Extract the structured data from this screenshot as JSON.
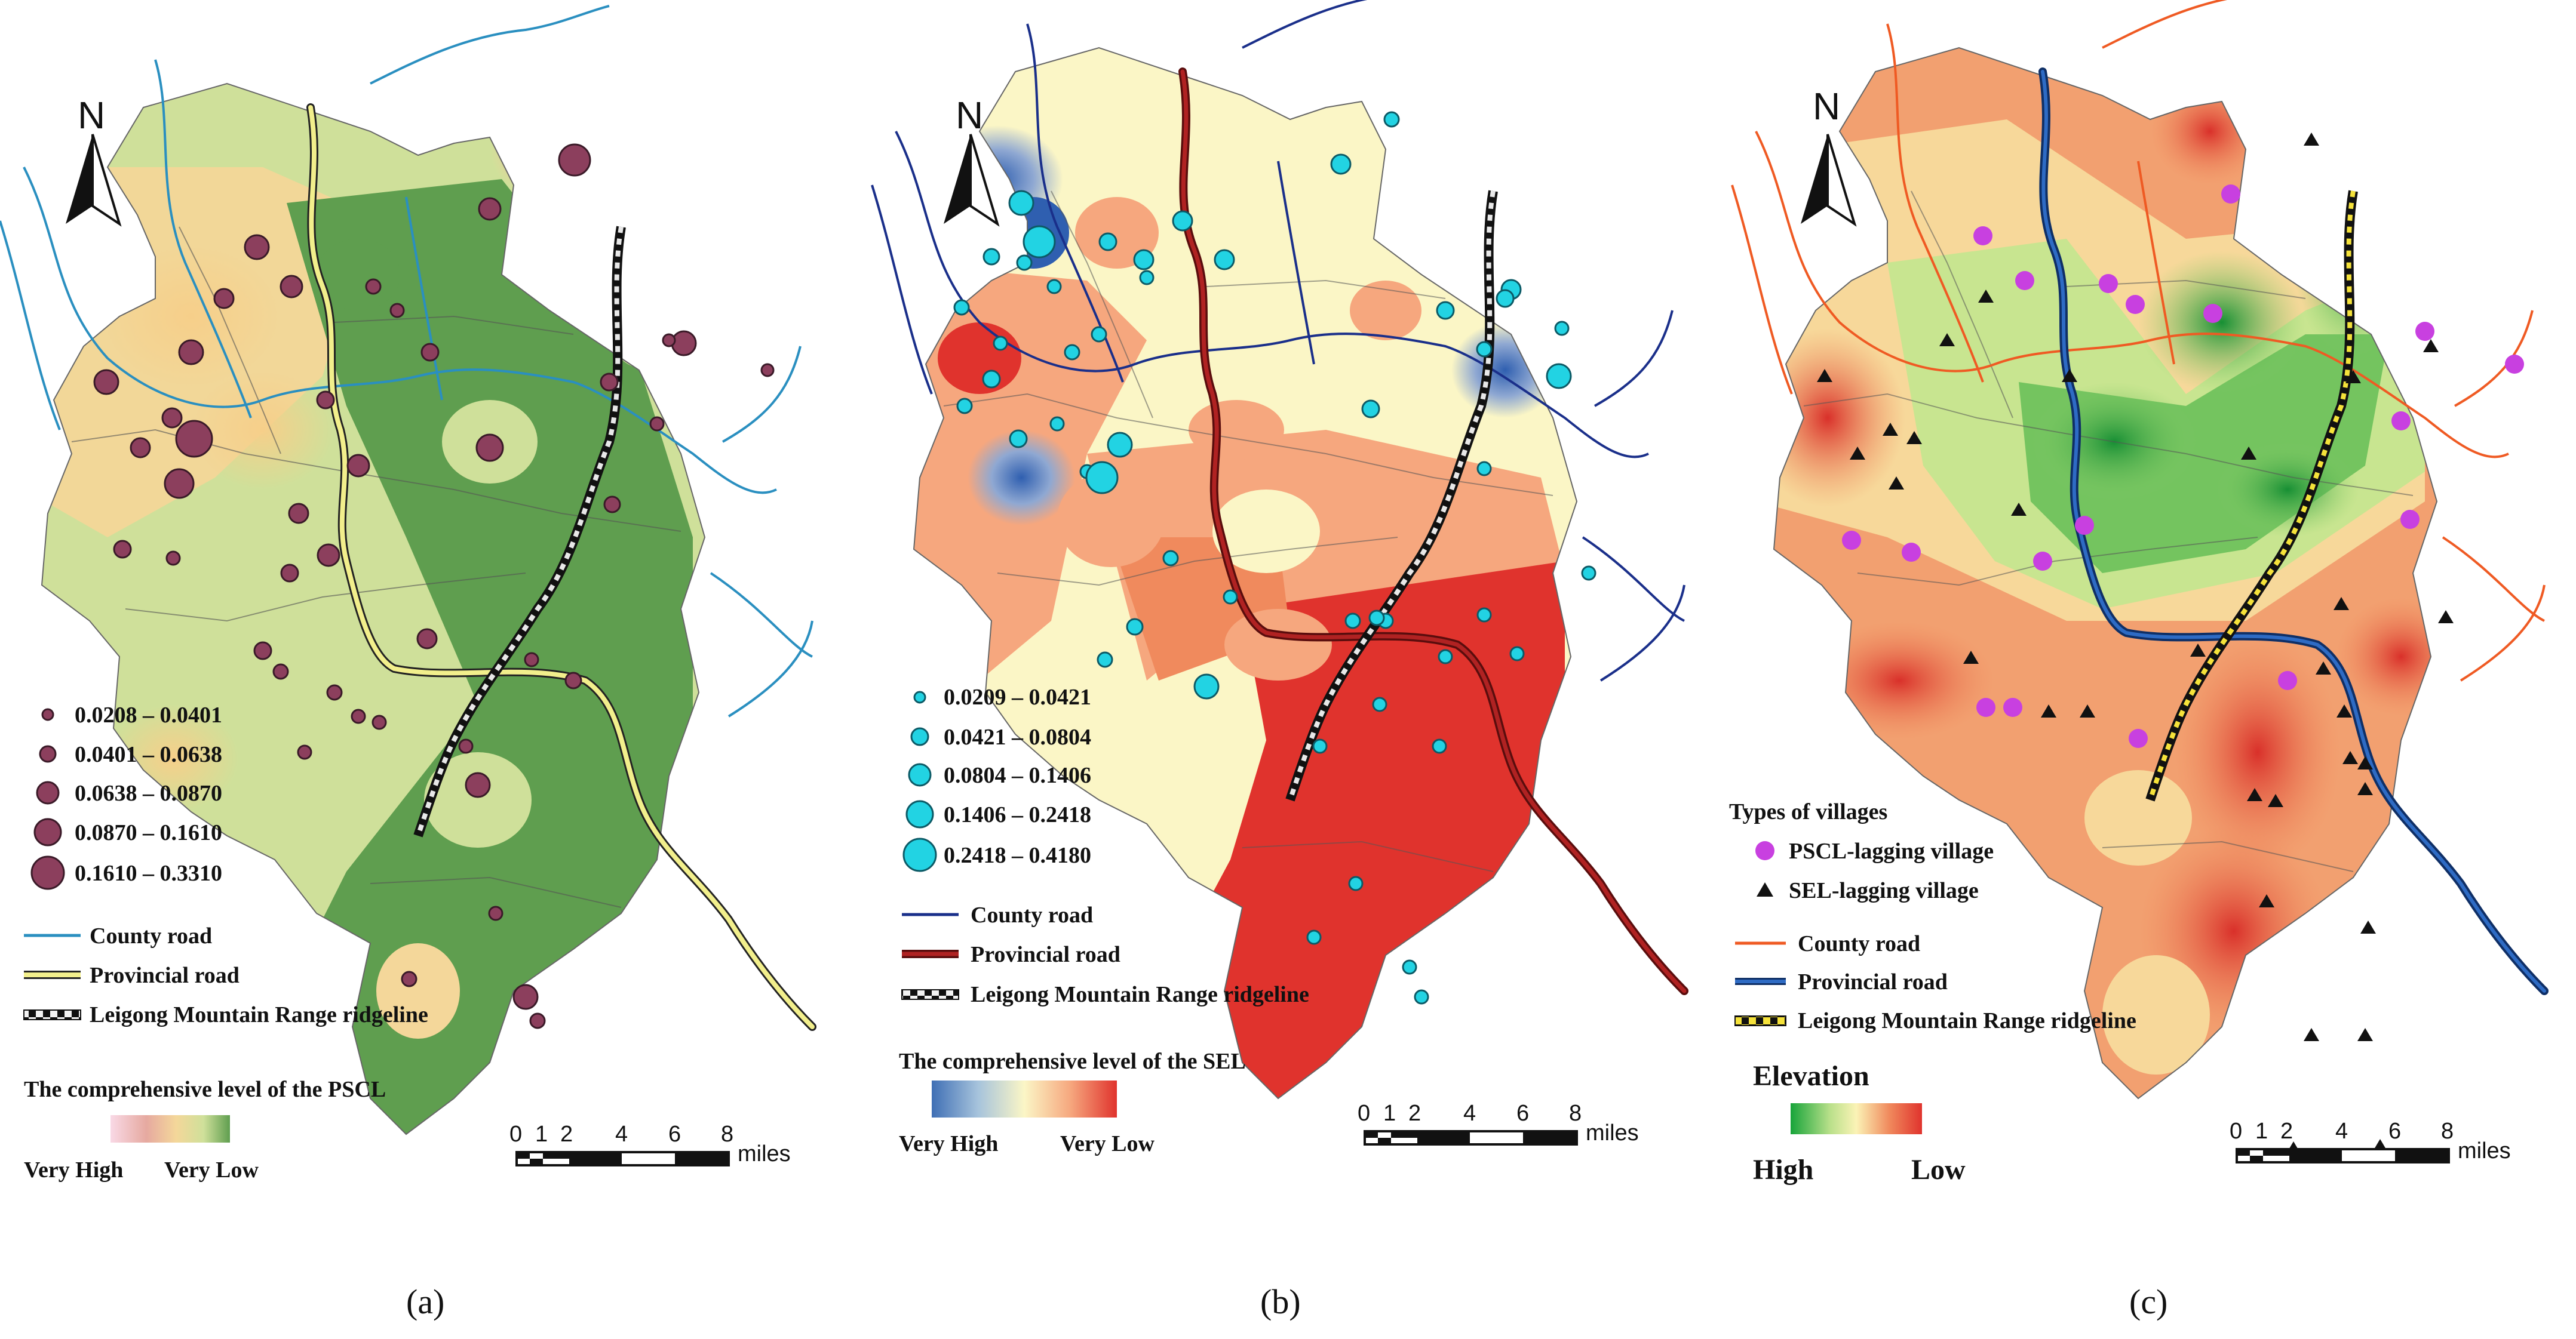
{
  "panels": [
    {
      "id": "a",
      "caption": "(a)",
      "north": "N",
      "points_legend": [
        {
          "label": "0.0208 – 0.0401",
          "size": 1
        },
        {
          "label": "0.0401 – 0.0638",
          "size": 2
        },
        {
          "label": "0.0638 – 0.0870",
          "size": 3
        },
        {
          "label": "0.0870 – 0.1610",
          "size": 4
        },
        {
          "label": "0.1610 – 0.3310",
          "size": 5
        }
      ],
      "line_legend": [
        {
          "label": "County road",
          "kind": "county"
        },
        {
          "label": "Provincial road",
          "kind": "provincial"
        },
        {
          "label": "Leigong Mountain Range ridgeline",
          "kind": "ridge"
        }
      ],
      "ramp_title": "The comprehensive level of the PSCL",
      "ramp_colors": [
        "#f9d9e6",
        "#e6a9a0",
        "#f4d79a",
        "#cfe09a",
        "#5f9e4f"
      ],
      "ramp_left": "Very High",
      "ramp_right": "Very Low",
      "scale_ticks": [
        "0",
        "1",
        "2",
        "4",
        "6",
        "8"
      ],
      "scale_unit": "miles"
    },
    {
      "id": "b",
      "caption": "(b)",
      "north": "N",
      "points_legend": [
        {
          "label": "0.0209 – 0.0421",
          "size": 1
        },
        {
          "label": "0.0421 – 0.0804",
          "size": 2
        },
        {
          "label": "0.0804 – 0.1406",
          "size": 3
        },
        {
          "label": "0.1406 – 0.2418",
          "size": 4
        },
        {
          "label": "0.2418 – 0.4180",
          "size": 5
        }
      ],
      "line_legend": [
        {
          "label": "County road",
          "kind": "county"
        },
        {
          "label": "Provincial road",
          "kind": "provincial"
        },
        {
          "label": "Leigong Mountain Range ridgeline",
          "kind": "ridge"
        }
      ],
      "ramp_title": "The comprehensive level of the SEL",
      "ramp_colors": [
        "#3f6fb5",
        "#a6c3dc",
        "#fbf6c6",
        "#f6a77e",
        "#e0332d"
      ],
      "ramp_left": "Very High",
      "ramp_right": "Very Low",
      "scale_ticks": [
        "0",
        "1",
        "2",
        "4",
        "6",
        "8"
      ],
      "scale_unit": "miles"
    },
    {
      "id": "c",
      "caption": "(c)",
      "north": "N",
      "types_title": "Types of  villages",
      "types_legend": [
        {
          "label": "PSCL-lagging village",
          "kind": "pscl"
        },
        {
          "label": "SEL-lagging village",
          "kind": "sel"
        }
      ],
      "line_legend": [
        {
          "label": "County road",
          "kind": "county"
        },
        {
          "label": "Provincial road",
          "kind": "provincial"
        },
        {
          "label": "Leigong Mountain Range ridgeline",
          "kind": "ridge"
        }
      ],
      "ramp_title": "Elevation",
      "ramp_colors": [
        "#17a43a",
        "#b9e08a",
        "#fbf3b6",
        "#f08a5d",
        "#e0332d"
      ],
      "ramp_left": "High",
      "ramp_right": "Low",
      "scale_ticks": [
        "0",
        "1",
        "2",
        "4",
        "6",
        "8"
      ],
      "scale_unit": "miles"
    }
  ],
  "colors": {
    "county_road_a": "#2a8fc0",
    "county_road_b": "#1a2f8a",
    "county_road_c": "#ef5a23",
    "provincial_a": "#f2ef8c",
    "provincial_b": "#9a1b1b",
    "provincial_c": "#1d4f9e",
    "ridge_yellow": "#f5e23a",
    "pscl_point": "#8c3f5d",
    "sel_point": "#22d3e3",
    "pscl_village": "#c840e0",
    "sel_village": "#111111"
  }
}
